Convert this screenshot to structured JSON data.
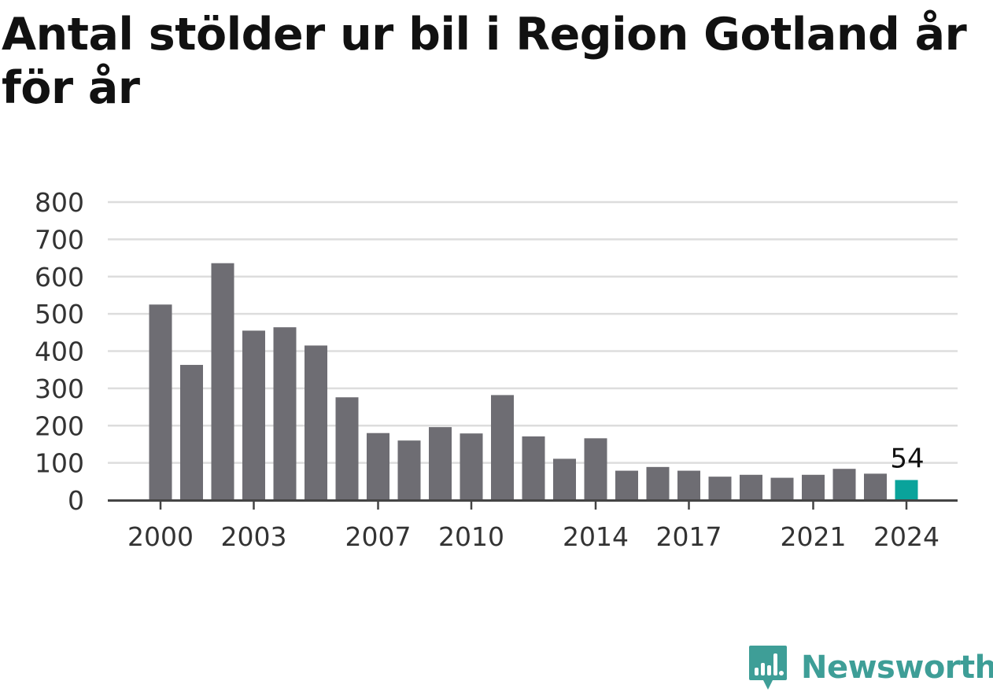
{
  "chart_data": {
    "type": "bar",
    "title": "Antal stölder ur bil i Region Gotland år för år",
    "xlabel": "",
    "ylabel": "",
    "categories": [
      "2000",
      "2001",
      "2002",
      "2003",
      "2004",
      "2005",
      "2006",
      "2007",
      "2008",
      "2009",
      "2010",
      "2011",
      "2012",
      "2013",
      "2014",
      "2015",
      "2016",
      "2017",
      "2018",
      "2019",
      "2020",
      "2021",
      "2022",
      "2023",
      "2024"
    ],
    "values": [
      525,
      363,
      636,
      455,
      464,
      415,
      276,
      180,
      160,
      196,
      179,
      282,
      171,
      111,
      166,
      79,
      89,
      79,
      63,
      68,
      60,
      68,
      84,
      71,
      54
    ],
    "x_tick_labels": [
      "2000",
      "2003",
      "2007",
      "2010",
      "2014",
      "2017",
      "2021",
      "2024"
    ],
    "y_ticks": [
      0,
      100,
      200,
      300,
      400,
      500,
      600,
      700,
      800
    ],
    "ylim": [
      0,
      800
    ],
    "grid": true,
    "highlight": {
      "category": "2024",
      "label": "54"
    },
    "colors": {
      "bar": "#6e6d73",
      "highlight": "#0aa39b",
      "grid": "#dddddd",
      "axis": "#444444"
    }
  },
  "brand": {
    "name": "Newsworthy",
    "icon": "newsworthy-chart-bubble-icon",
    "color": "#3e9e97"
  }
}
